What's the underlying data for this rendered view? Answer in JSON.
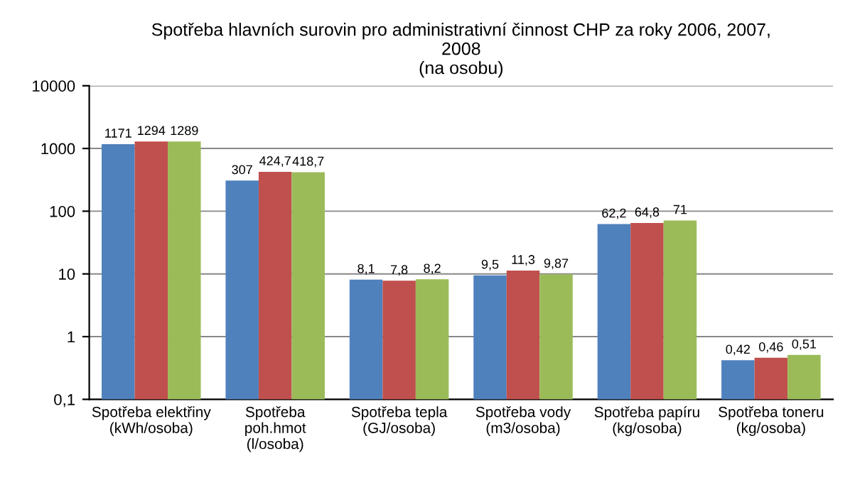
{
  "chart_data": {
    "type": "bar",
    "title": "Spotřeba hlavních surovin pro administrativní činnost CHP za roky 2006, 2007,\n2008\n(na osobu)",
    "categories": [
      "Spotřeba elektřiny\n(kWh/osoba)",
      "Spotřeba\npoh.hmot\n(l/osoba)",
      "Spotřeba tepla\n(GJ/osoba)",
      "Spotřeba vody\n(m3/osoba)",
      "Spotřeba papíru\n(kg/osoba)",
      "Spotřeba toneru\n(kg/osoba)"
    ],
    "series": [
      {
        "color": "#4f81bd",
        "values": [
          1171,
          307,
          8.1,
          9.5,
          62.2,
          0.42
        ],
        "value_labels": [
          "1171",
          "307",
          "8,1",
          "9,5",
          "62,2",
          "0,42"
        ]
      },
      {
        "color": "#c0504d",
        "values": [
          1294,
          424.7,
          7.8,
          11.3,
          64.8,
          0.46
        ],
        "value_labels": [
          "1294",
          "424,7",
          "7,8",
          "11,3",
          "64,8",
          "0,46"
        ]
      },
      {
        "color": "#9bbb59",
        "values": [
          1289,
          418.7,
          8.2,
          9.87,
          71,
          0.51
        ],
        "value_labels": [
          "1289",
          "418,7",
          "8,2",
          "9,87",
          "71",
          "0,51"
        ]
      }
    ],
    "log": "y",
    "ylim": [
      0.1,
      10000
    ],
    "yticks": [
      {
        "value": 0.1,
        "label": "0,1"
      },
      1,
      10,
      100,
      1000,
      10000
    ],
    "grid": "y"
  }
}
